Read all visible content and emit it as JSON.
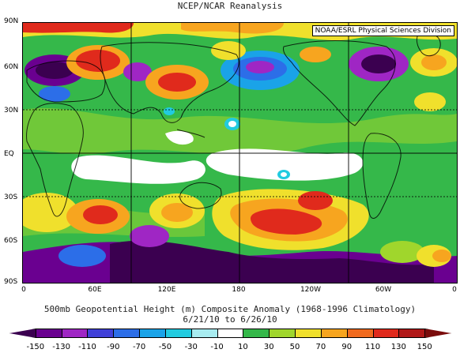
{
  "title": "NCEP/NCAR Reanalysis",
  "credit": "NOAA/ESRL Physical Sciences Division",
  "caption_line1": "500mb Geopotential Height (m) Composite Anomaly (1968-1996 Climatology)",
  "caption_line2": "6/21/10 to 6/26/10",
  "lat_labels": [
    "90N",
    "60N",
    "30N",
    "EQ",
    "30S",
    "60S",
    "90S"
  ],
  "lon_labels": [
    "0",
    "60E",
    "120E",
    "180",
    "120W",
    "60W",
    "0"
  ],
  "colorbar": {
    "labels": [
      "-150",
      "-130",
      "-110",
      "-90",
      "-70",
      "-50",
      "-30",
      "-10",
      "10",
      "30",
      "50",
      "70",
      "90",
      "110",
      "130",
      "150"
    ],
    "colors": [
      "#3b0050",
      "#6a0090",
      "#9f26c4",
      "#4040d8",
      "#2c6ee8",
      "#1aa3e8",
      "#22cbe0",
      "#a8ecf0",
      "#ffffff",
      "#35b84a",
      "#a0d62c",
      "#f0e02c",
      "#f7a51f",
      "#f06a1e",
      "#e02a1c",
      "#b01818",
      "#7a0c0c"
    ]
  },
  "map": {
    "colors": {
      "background": "#35b84a",
      "positive_high": "#e02a1c",
      "positive_mid": "#f7a51f",
      "positive_low": "#f0e02c",
      "light_green": "#a0d62c",
      "neutral": "#ffffff",
      "negative_low": "#a8ecf0",
      "negative_mid": "#2c6ee8",
      "negative_high": "#6a0090",
      "negative_deep": "#3b0050"
    }
  }
}
